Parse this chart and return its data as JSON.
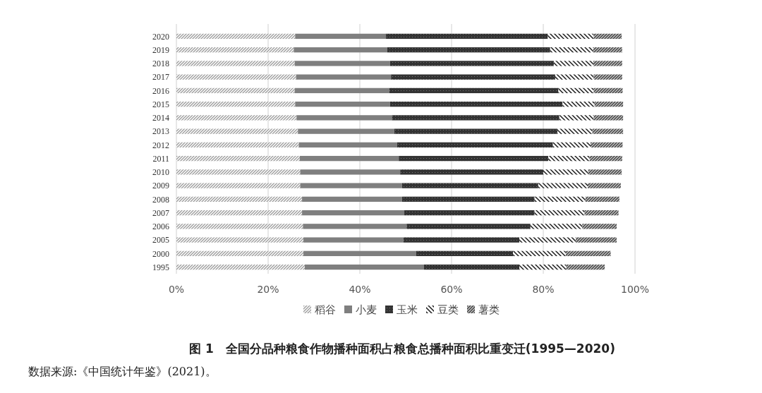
{
  "chart_data": {
    "type": "bar",
    "orientation": "horizontal",
    "stacked": true,
    "title": "图 1　全国分品种粮食作物播种面积占粮食总播种面积比重变迁(1995—2020)",
    "annotations": [
      "数据来源:《中国统计年鉴》(2021)。"
    ],
    "categories": [
      "2020",
      "2019",
      "2018",
      "2017",
      "2016",
      "2015",
      "2014",
      "2013",
      "2012",
      "2011",
      "2010",
      "2009",
      "2008",
      "2007",
      "2006",
      "2005",
      "2000",
      "1995"
    ],
    "series": [
      {
        "name": "稻谷",
        "color": "#9a9a9a",
        "values": [
          25.9,
          25.6,
          25.8,
          26.1,
          25.8,
          25.9,
          26.2,
          26.5,
          26.7,
          26.9,
          27.0,
          27.0,
          27.4,
          27.4,
          27.6,
          27.7,
          27.7,
          28.0
        ]
      },
      {
        "name": "小麦",
        "color": "#7f7f7f",
        "values": [
          19.8,
          20.4,
          20.8,
          20.7,
          20.6,
          20.7,
          20.8,
          21.0,
          21.4,
          21.6,
          21.8,
          22.2,
          21.8,
          22.3,
          22.6,
          21.8,
          24.6,
          26.0
        ]
      },
      {
        "name": "玉米",
        "color": "#333333",
        "values": [
          35.3,
          35.5,
          35.7,
          35.8,
          36.9,
          37.6,
          36.5,
          35.6,
          34.0,
          32.6,
          31.2,
          29.7,
          28.9,
          28.4,
          27.0,
          25.3,
          21.1,
          20.8
        ]
      },
      {
        "name": "豆类",
        "color": "#1a1a1a",
        "values": [
          10.0,
          9.4,
          8.6,
          8.4,
          7.7,
          7.0,
          7.5,
          7.6,
          8.2,
          9.0,
          9.8,
          10.8,
          11.1,
          10.9,
          11.3,
          12.3,
          11.5,
          10.2
        ]
      },
      {
        "name": "薯类",
        "color": "#555555",
        "values": [
          6.1,
          6.3,
          6.3,
          6.2,
          6.3,
          6.2,
          6.4,
          6.7,
          7.0,
          7.1,
          7.3,
          7.2,
          7.4,
          7.4,
          7.5,
          8.9,
          9.8,
          8.4
        ]
      }
    ],
    "xlim": [
      0,
      100
    ],
    "xticks": [
      {
        "value": 0,
        "label": "0%"
      },
      {
        "value": 20,
        "label": "20%"
      },
      {
        "value": 40,
        "label": "40%"
      },
      {
        "value": 60,
        "label": "60%"
      },
      {
        "value": 80,
        "label": "80%"
      },
      {
        "value": 100,
        "label": "100%"
      }
    ],
    "grid": "x",
    "legend": "bottom"
  }
}
